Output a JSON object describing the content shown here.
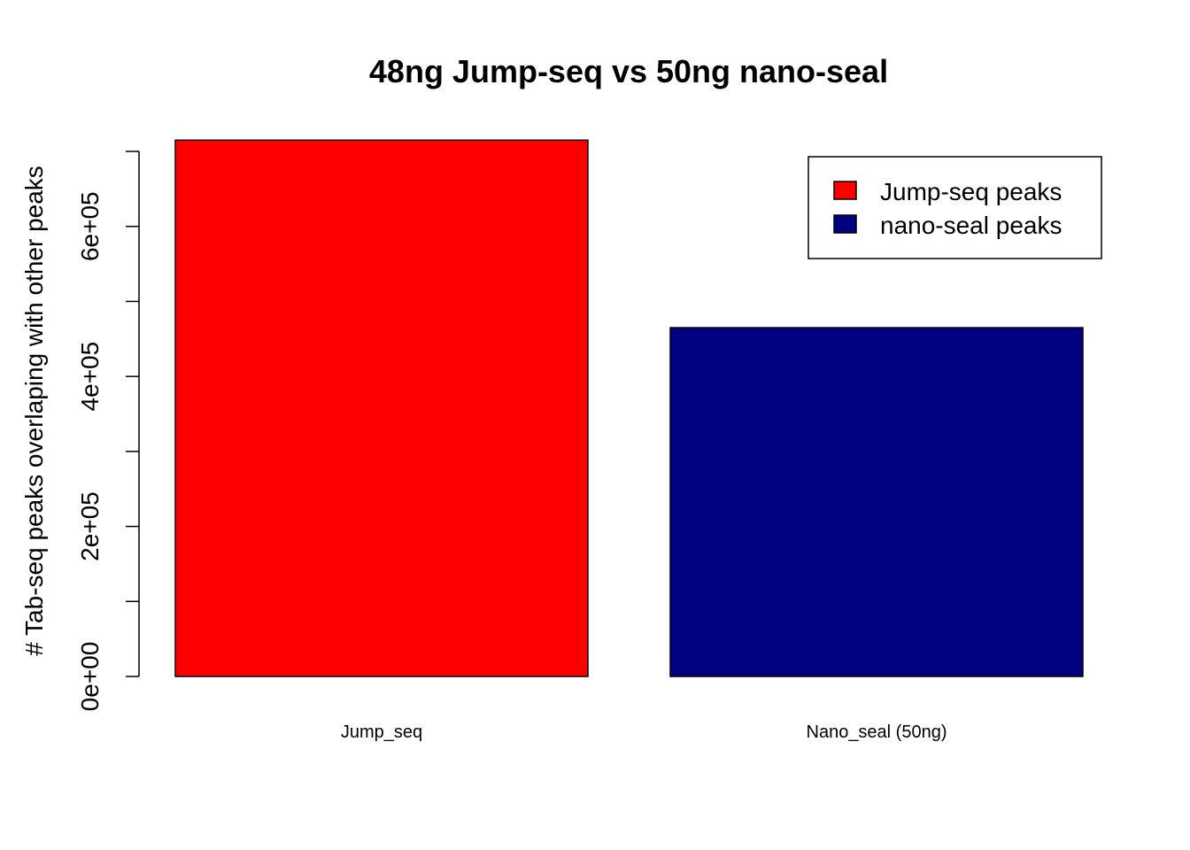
{
  "chart_data": {
    "type": "bar",
    "title": "48ng Jump-seq vs 50ng nano-seal",
    "xlabel": "",
    "ylabel": "# Tab-seq peaks overlaping with other peaks",
    "categories": [
      "Jump_seq",
      "Nano_seal (50ng)"
    ],
    "values": [
      715000,
      465000
    ],
    "colors": [
      "#ff0000",
      "#000080"
    ],
    "ylim": [
      0,
      700000
    ],
    "y_ticks": [
      0,
      100000,
      200000,
      300000,
      400000,
      500000,
      600000,
      700000
    ],
    "y_tick_labels": [
      {
        "value": 0,
        "label": "0e+00"
      },
      {
        "value": 200000,
        "label": "2e+05"
      },
      {
        "value": 400000,
        "label": "4e+05"
      },
      {
        "value": 600000,
        "label": "6e+05"
      }
    ],
    "legend": {
      "position": "top-right",
      "entries": [
        {
          "label": "Jump-seq peaks",
          "color": "#ff0000"
        },
        {
          "label": "nano-seal peaks",
          "color": "#000080"
        }
      ]
    },
    "grid": false
  }
}
